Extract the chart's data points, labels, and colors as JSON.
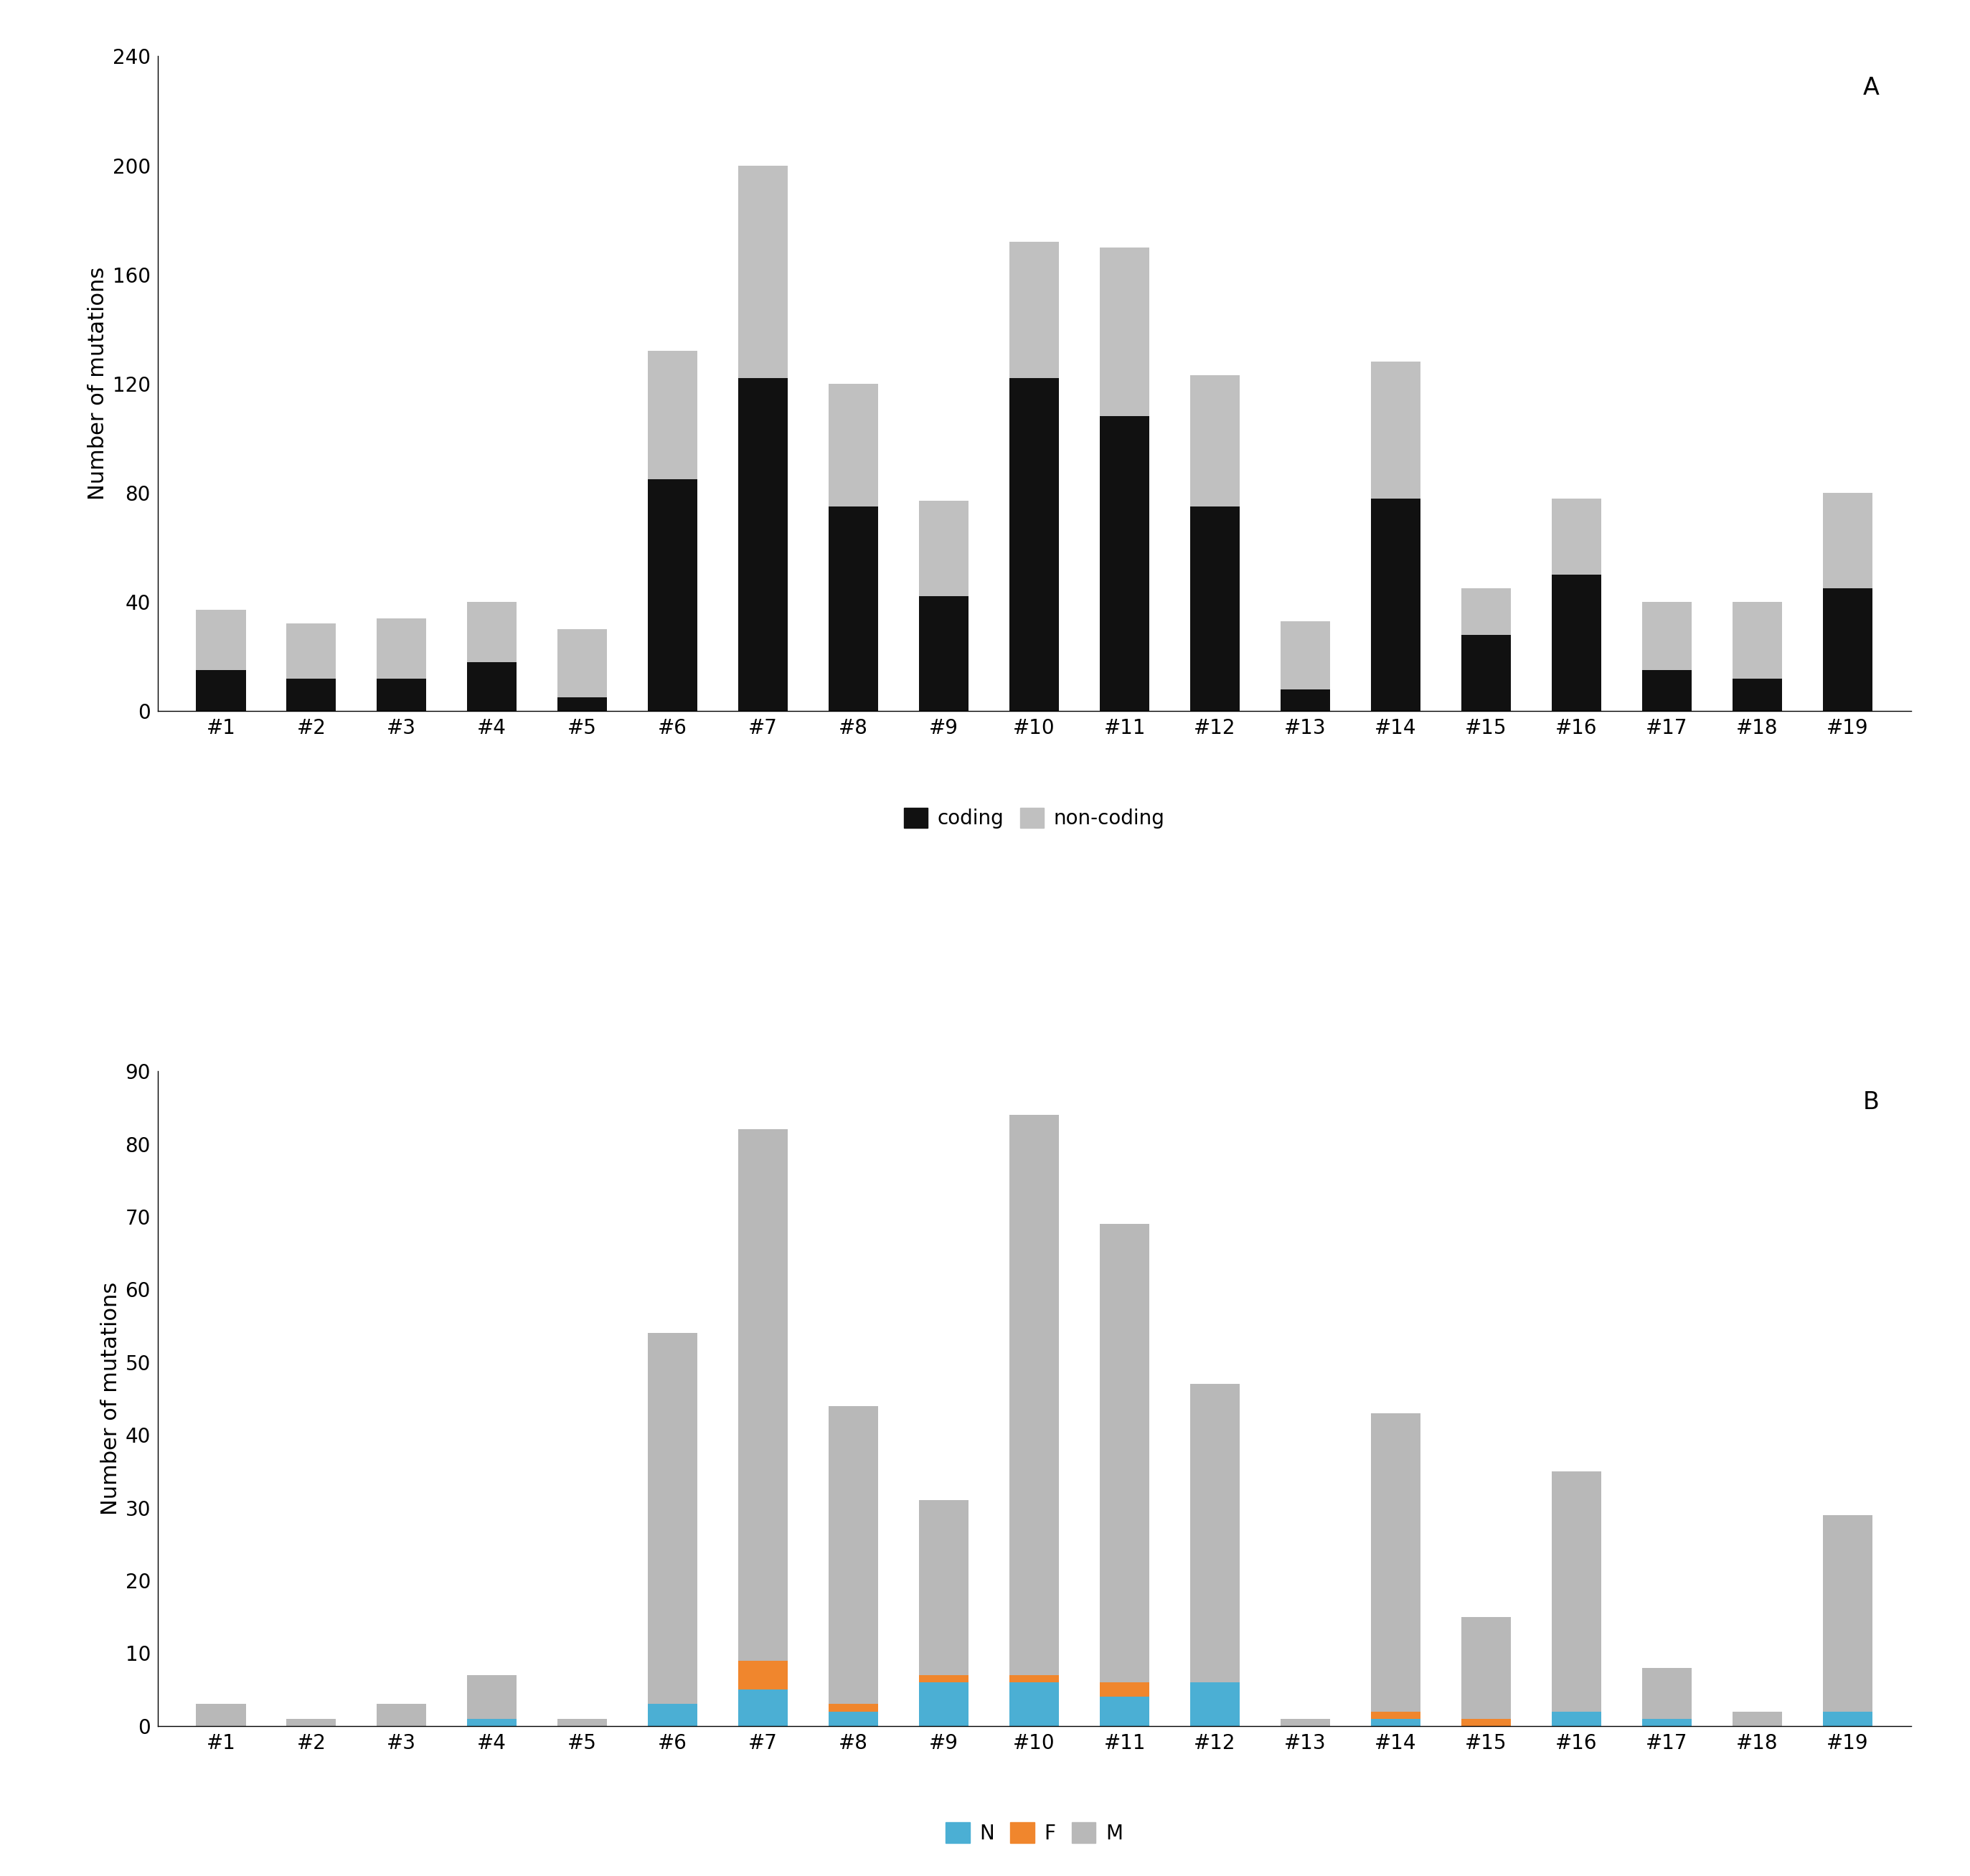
{
  "categories": [
    "#1",
    "#2",
    "#3",
    "#4",
    "#5",
    "#6",
    "#7",
    "#8",
    "#9",
    "#10",
    "#11",
    "#12",
    "#13",
    "#14",
    "#15",
    "#16",
    "#17",
    "#18",
    "#19"
  ],
  "chartA": {
    "coding": [
      15,
      12,
      12,
      18,
      5,
      85,
      122,
      75,
      42,
      122,
      108,
      75,
      8,
      78,
      28,
      50,
      15,
      12,
      45
    ],
    "non_coding": [
      22,
      20,
      22,
      22,
      25,
      47,
      78,
      45,
      35,
      50,
      62,
      48,
      25,
      50,
      17,
      28,
      25,
      28,
      35
    ]
  },
  "chartB": {
    "N": [
      0,
      0,
      0,
      1,
      0,
      3,
      5,
      2,
      6,
      6,
      4,
      6,
      0,
      1,
      0,
      2,
      1,
      0,
      2
    ],
    "F": [
      0,
      0,
      0,
      0,
      0,
      0,
      4,
      1,
      1,
      1,
      2,
      0,
      0,
      1,
      1,
      0,
      0,
      0,
      0
    ],
    "M": [
      3,
      1,
      3,
      6,
      1,
      51,
      73,
      41,
      24,
      77,
      63,
      41,
      1,
      41,
      14,
      33,
      7,
      2,
      27
    ]
  },
  "colorA_coding": "#111111",
  "colorA_noncoding": "#c0c0c0",
  "colorB_N": "#4bafd4",
  "colorB_F": "#f0862d",
  "colorB_M": "#b8b8b8",
  "ylimA": [
    0,
    240
  ],
  "yticsA": [
    0,
    40,
    80,
    120,
    160,
    200,
    240
  ],
  "ylimB": [
    0,
    90
  ],
  "yticsB": [
    0,
    10,
    20,
    30,
    40,
    50,
    60,
    70,
    80,
    90
  ],
  "ylabel": "Number of mutations",
  "label_A": "A",
  "label_B": "B",
  "legendA": [
    "coding",
    "non-coding"
  ],
  "legendB": [
    "N",
    "F",
    "M"
  ],
  "bg_color": "#ffffff",
  "bar_width": 0.55
}
